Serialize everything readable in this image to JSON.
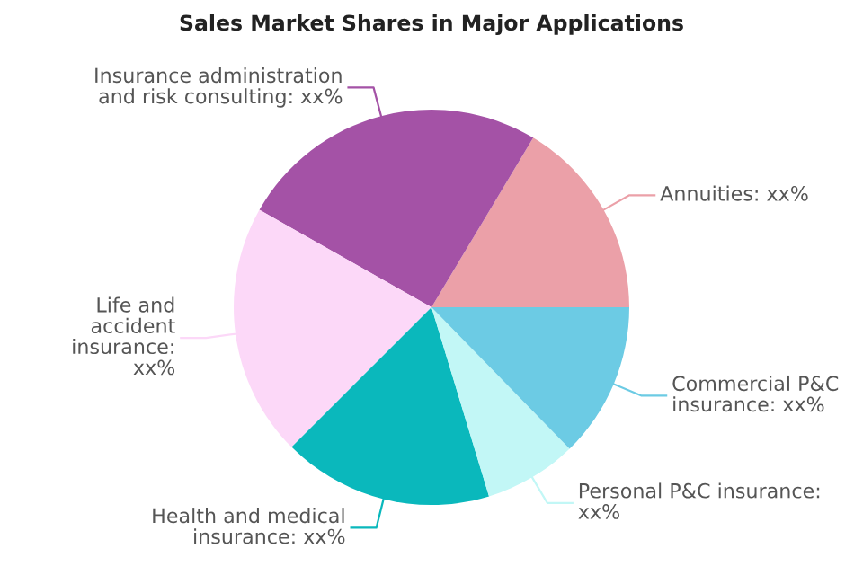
{
  "chart_data": {
    "type": "pie",
    "title": "Sales Market Shares in Major Applications",
    "categories": [
      "Annuities: xx%",
      "Insurance administration\nand risk consulting: xx%",
      "Life and\naccident\ninsurance:\nxx%",
      "Health and medical\ninsurance: xx%",
      "Personal P&C insurance:\nxx%",
      "Commercial P&C\ninsurance: xx%"
    ],
    "values": [
      16.4,
      25.4,
      20.7,
      17.2,
      7.6,
      12.7
    ],
    "colors": [
      "#eba0a8",
      "#a452a6",
      "#fcd8f8",
      "#0ab8bc",
      "#c2f7f6",
      "#6ccbe4"
    ]
  }
}
